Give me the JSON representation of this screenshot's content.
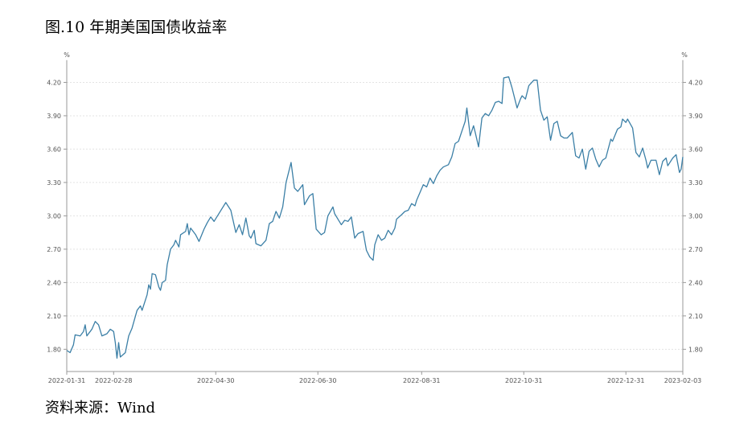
{
  "chart_data": {
    "type": "line",
    "title": "图.10 年期美国国债收益率",
    "source": "资料来源：Wind",
    "y_unit": "%",
    "y2_unit": "%",
    "xlim": [
      "2022-01-31",
      "2023-02-03"
    ],
    "xticks": [
      "2022-01-31",
      "2022-02-28",
      "2022-04-30",
      "2022-06-30",
      "2022-08-31",
      "2022-10-31",
      "2022-12-31",
      "2023-02-03"
    ],
    "ylim": [
      1.6,
      4.4
    ],
    "yticks": [
      {
        "value": 1.8,
        "label": "1.80"
      },
      {
        "value": 2.1,
        "label": "2.10"
      },
      {
        "value": 2.4,
        "label": "2.40"
      },
      {
        "value": 2.7,
        "label": "2.70"
      },
      {
        "value": 3.0,
        "label": "3.00"
      },
      {
        "value": 3.3,
        "label": "3.30"
      },
      {
        "value": 3.6,
        "label": "3.60"
      },
      {
        "value": 3.9,
        "label": "3.90"
      },
      {
        "value": 4.2,
        "label": "4.20"
      }
    ],
    "y2lim": [
      1.6,
      4.4
    ],
    "y2ticks": [
      {
        "value": 1.8,
        "label": "1.80"
      },
      {
        "value": 2.1,
        "label": "2.10"
      },
      {
        "value": 2.4,
        "label": "2.40"
      },
      {
        "value": 2.7,
        "label": "2.70"
      },
      {
        "value": 3.0,
        "label": "3.00"
      },
      {
        "value": 3.3,
        "label": "3.30"
      },
      {
        "value": 3.6,
        "label": "3.60"
      },
      {
        "value": 3.9,
        "label": "3.90"
      },
      {
        "value": 4.2,
        "label": "4.20"
      }
    ],
    "grid": true,
    "x": [
      "2022-01-31",
      "2022-02-02",
      "2022-02-04",
      "2022-02-05",
      "2022-02-08",
      "2022-02-10",
      "2022-02-11",
      "2022-02-12",
      "2022-02-15",
      "2022-02-17",
      "2022-02-19",
      "2022-02-21",
      "2022-02-24",
      "2022-02-26",
      "2022-02-28",
      "2022-03-01",
      "2022-03-02",
      "2022-03-03",
      "2022-03-04",
      "2022-03-07",
      "2022-03-09",
      "2022-03-11",
      "2022-03-14",
      "2022-03-16",
      "2022-03-17",
      "2022-03-20",
      "2022-03-21",
      "2022-03-22",
      "2022-03-23",
      "2022-03-25",
      "2022-03-27",
      "2022-03-28",
      "2022-03-29",
      "2022-03-31",
      "2022-04-01",
      "2022-04-03",
      "2022-04-05",
      "2022-04-06",
      "2022-04-08",
      "2022-04-09",
      "2022-04-12",
      "2022-04-13",
      "2022-04-14",
      "2022-04-15",
      "2022-04-18",
      "2022-04-20",
      "2022-04-23",
      "2022-04-25",
      "2022-04-27",
      "2022-04-29",
      "2022-05-06",
      "2022-05-09",
      "2022-05-12",
      "2022-05-14",
      "2022-05-16",
      "2022-05-18",
      "2022-05-20",
      "2022-05-21",
      "2022-05-23",
      "2022-05-24",
      "2022-05-27",
      "2022-05-30",
      "2022-06-01",
      "2022-06-03",
      "2022-06-05",
      "2022-06-07",
      "2022-06-09",
      "2022-06-11",
      "2022-06-14",
      "2022-06-16",
      "2022-06-18",
      "2022-06-21",
      "2022-06-22",
      "2022-06-25",
      "2022-06-27",
      "2022-06-29",
      "2022-07-02",
      "2022-07-04",
      "2022-07-06",
      "2022-07-09",
      "2022-07-10",
      "2022-07-12",
      "2022-07-14",
      "2022-07-16",
      "2022-07-18",
      "2022-07-20",
      "2022-07-22",
      "2022-07-24",
      "2022-07-27",
      "2022-07-29",
      "2022-07-31",
      "2022-08-02",
      "2022-08-03",
      "2022-08-05",
      "2022-08-07",
      "2022-08-09",
      "2022-08-11",
      "2022-08-13",
      "2022-08-15",
      "2022-08-16",
      "2022-08-19",
      "2022-08-21",
      "2022-08-23",
      "2022-08-25",
      "2022-08-27",
      "2022-08-28",
      "2022-08-30",
      "2022-09-01",
      "2022-09-03",
      "2022-09-05",
      "2022-09-07",
      "2022-09-09",
      "2022-09-11",
      "2022-09-13",
      "2022-09-16",
      "2022-09-18",
      "2022-09-20",
      "2022-09-22",
      "2022-09-24",
      "2022-09-26",
      "2022-09-27",
      "2022-09-29",
      "2022-10-01",
      "2022-10-02",
      "2022-10-04",
      "2022-10-06",
      "2022-10-08",
      "2022-10-10",
      "2022-10-12",
      "2022-10-14",
      "2022-10-16",
      "2022-10-18",
      "2022-10-19",
      "2022-10-22",
      "2022-10-24",
      "2022-10-27",
      "2022-10-29",
      "2022-10-30",
      "2022-11-01",
      "2022-11-03",
      "2022-11-06",
      "2022-11-08",
      "2022-11-10",
      "2022-11-12",
      "2022-11-14",
      "2022-11-16",
      "2022-11-18",
      "2022-11-20",
      "2022-11-22",
      "2022-11-24",
      "2022-11-26",
      "2022-11-29",
      "2022-12-01",
      "2022-12-03",
      "2022-12-05",
      "2022-12-07",
      "2022-12-09",
      "2022-12-11",
      "2022-12-13",
      "2022-12-15",
      "2022-12-17",
      "2022-12-19",
      "2022-12-22",
      "2022-12-23",
      "2022-12-26",
      "2022-12-28",
      "2022-12-29",
      "2022-12-31",
      "2023-01-01",
      "2023-01-04",
      "2023-01-06",
      "2023-01-08",
      "2023-01-10",
      "2023-01-12",
      "2023-01-13",
      "2023-01-15",
      "2023-01-18",
      "2023-01-20",
      "2023-01-22",
      "2023-01-24",
      "2023-01-25",
      "2023-01-28",
      "2023-01-30",
      "2023-02-01",
      "2023-02-02",
      "2023-02-03"
    ],
    "series": [
      {
        "name": "10年期美国国债收益率",
        "color": "#3b7fa6",
        "values": [
          1.79,
          1.77,
          1.84,
          1.93,
          1.92,
          1.96,
          2.02,
          1.92,
          1.98,
          2.05,
          2.02,
          1.92,
          1.94,
          1.98,
          1.96,
          1.86,
          1.72,
          1.86,
          1.73,
          1.77,
          1.92,
          1.99,
          2.15,
          2.19,
          2.15,
          2.29,
          2.38,
          2.34,
          2.48,
          2.47,
          2.36,
          2.33,
          2.4,
          2.42,
          2.56,
          2.7,
          2.74,
          2.78,
          2.72,
          2.83,
          2.86,
          2.93,
          2.83,
          2.89,
          2.83,
          2.77,
          2.88,
          2.94,
          2.99,
          2.95,
          3.12,
          3.05,
          2.85,
          2.92,
          2.83,
          2.98,
          2.82,
          2.8,
          2.87,
          2.75,
          2.73,
          2.78,
          2.93,
          2.95,
          3.04,
          2.98,
          3.08,
          3.3,
          3.48,
          3.25,
          3.22,
          3.28,
          3.1,
          3.18,
          3.2,
          2.88,
          2.83,
          2.85,
          3.0,
          3.08,
          3.02,
          2.97,
          2.92,
          2.96,
          2.95,
          2.99,
          2.8,
          2.84,
          2.86,
          2.69,
          2.63,
          2.6,
          2.74,
          2.83,
          2.78,
          2.8,
          2.87,
          2.83,
          2.89,
          2.97,
          3.01,
          3.04,
          3.05,
          3.11,
          3.09,
          3.14,
          3.21,
          3.28,
          3.26,
          3.34,
          3.29,
          3.36,
          3.41,
          3.44,
          3.46,
          3.53,
          3.65,
          3.67,
          3.76,
          3.85,
          3.97,
          3.72,
          3.81,
          3.75,
          3.62,
          3.88,
          3.92,
          3.9,
          3.95,
          4.02,
          4.03,
          4.01,
          4.24,
          4.25,
          4.15,
          3.97,
          4.05,
          4.08,
          4.05,
          4.17,
          4.22,
          4.22,
          3.95,
          3.86,
          3.89,
          3.68,
          3.83,
          3.85,
          3.72,
          3.7,
          3.7,
          3.75,
          3.54,
          3.52,
          3.6,
          3.42,
          3.58,
          3.61,
          3.51,
          3.44,
          3.5,
          3.52,
          3.69,
          3.67,
          3.78,
          3.8,
          3.87,
          3.84,
          3.87,
          3.79,
          3.57,
          3.53,
          3.61,
          3.5,
          3.43,
          3.5,
          3.5,
          3.37,
          3.49,
          3.52,
          3.45,
          3.52,
          3.55,
          3.39,
          3.42,
          3.53
        ]
      }
    ]
  }
}
